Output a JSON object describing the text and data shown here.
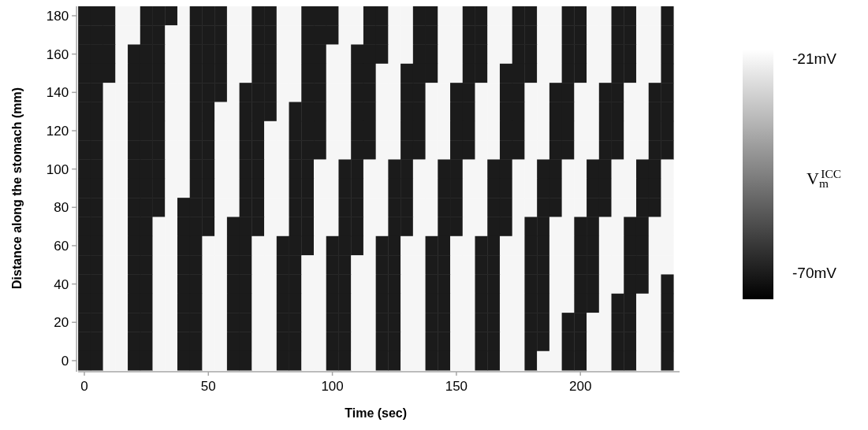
{
  "chart_data": {
    "type": "heatmap",
    "xlabel": "Time (sec)",
    "ylabel": "Distance along the stomach (mm)",
    "clabel": "V$_{m}$$^{ICC}$",
    "clim": [
      -76,
      -19
    ],
    "cticks": [
      {
        "value": -21,
        "label": "-21mV"
      },
      {
        "value": -70,
        "label": "-70mV"
      }
    ],
    "categories": [
      "0",
      null,
      null,
      null,
      null,
      null,
      null,
      null,
      null,
      null,
      "50",
      null,
      null,
      null,
      null,
      null,
      null,
      null,
      null,
      null,
      "100",
      null,
      null,
      null,
      null,
      null,
      null,
      null,
      null,
      null,
      "150",
      null,
      null,
      null,
      null,
      null,
      null,
      null,
      null,
      null,
      "200",
      null,
      null,
      null,
      null,
      null,
      null,
      null
    ],
    "y_categories": [
      "180",
      null,
      "160",
      null,
      "140",
      null,
      "120",
      null,
      "100",
      null,
      "80",
      null,
      "60",
      null,
      "40",
      null,
      "20",
      null,
      "0"
    ],
    "cells": [
      [
        -70,
        -70,
        -70,
        -21,
        -21,
        -70,
        -70,
        -70,
        -21,
        -70,
        -70,
        -70,
        -21,
        -21,
        -70,
        -70,
        -21,
        -21,
        -70,
        -70,
        -70,
        -21,
        -21,
        -70,
        -70,
        -21,
        -21,
        -70,
        -70,
        -21,
        -21,
        -70,
        -70,
        -21,
        -21,
        -70,
        -70,
        -21,
        -21,
        -70,
        -70,
        -21,
        -21,
        -70,
        -70,
        -21,
        -21,
        -70
      ],
      [
        -70,
        -70,
        -70,
        -21,
        -21,
        -70,
        -70,
        -21,
        -21,
        -70,
        -70,
        -70,
        -21,
        -21,
        -70,
        -70,
        -21,
        -21,
        -70,
        -70,
        -70,
        -21,
        -21,
        -70,
        -70,
        -21,
        -21,
        -70,
        -70,
        -21,
        -21,
        -70,
        -70,
        -21,
        -21,
        -70,
        -70,
        -21,
        -21,
        -70,
        -70,
        -21,
        -21,
        -70,
        -70,
        -21,
        -21,
        -70
      ],
      [
        -70,
        -70,
        -70,
        -21,
        -70,
        -70,
        -70,
        -21,
        -21,
        -70,
        -70,
        -70,
        -21,
        -21,
        -70,
        -70,
        -21,
        -21,
        -70,
        -70,
        -21,
        -21,
        -70,
        -70,
        -70,
        -21,
        -21,
        -70,
        -70,
        -21,
        -21,
        -70,
        -70,
        -21,
        -21,
        -70,
        -70,
        -21,
        -21,
        -70,
        -70,
        -21,
        -21,
        -70,
        -70,
        -21,
        -21,
        -70
      ],
      [
        -70,
        -70,
        -70,
        -21,
        -70,
        -70,
        -70,
        -21,
        -21,
        -70,
        -70,
        -70,
        -21,
        -21,
        -70,
        -70,
        -21,
        -21,
        -70,
        -70,
        -21,
        -21,
        -70,
        -70,
        -21,
        -21,
        -70,
        -70,
        -70,
        -21,
        -21,
        -70,
        -70,
        -21,
        -70,
        -70,
        -70,
        -21,
        -21,
        -70,
        -70,
        -21,
        -21,
        -70,
        -70,
        -21,
        -21,
        -70
      ],
      [
        -70,
        -70,
        -21,
        -21,
        -70,
        -70,
        -70,
        -21,
        -21,
        -70,
        -70,
        -70,
        -21,
        -70,
        -70,
        -70,
        -21,
        -21,
        -70,
        -70,
        -21,
        -21,
        -70,
        -70,
        -21,
        -21,
        -70,
        -70,
        -21,
        -21,
        -70,
        -70,
        -21,
        -21,
        -70,
        -70,
        -21,
        -21,
        -70,
        -70,
        -21,
        -21,
        -70,
        -70,
        -21,
        -21,
        -70,
        -70
      ],
      [
        -70,
        -70,
        -21,
        -21,
        -70,
        -70,
        -70,
        -21,
        -21,
        -70,
        -70,
        -21,
        -21,
        -70,
        -70,
        -70,
        -21,
        -70,
        -70,
        -70,
        -21,
        -21,
        -70,
        -70,
        -21,
        -21,
        -70,
        -70,
        -21,
        -21,
        -70,
        -70,
        -21,
        -21,
        -70,
        -70,
        -21,
        -21,
        -70,
        -70,
        -21,
        -21,
        -70,
        -70,
        -21,
        -21,
        -70,
        -70
      ],
      [
        -70,
        -70,
        -21,
        -21,
        -70,
        -70,
        -70,
        -21,
        -21,
        -70,
        -70,
        -21,
        -21,
        -70,
        -70,
        -21,
        -21,
        -70,
        -70,
        -70,
        -21,
        -21,
        -70,
        -70,
        -21,
        -21,
        -70,
        -70,
        -21,
        -21,
        -70,
        -70,
        -21,
        -21,
        -70,
        -70,
        -21,
        -21,
        -70,
        -70,
        -21,
        -21,
        -70,
        -70,
        -21,
        -21,
        -70,
        -70
      ],
      [
        -70,
        -70,
        -21,
        -21,
        -70,
        -70,
        -70,
        -21,
        -21,
        -70,
        -70,
        -21,
        -21,
        -70,
        -70,
        -21,
        -21,
        -70,
        -70,
        -70,
        -21,
        -21,
        -70,
        -70,
        -21,
        -21,
        -70,
        -70,
        -21,
        -21,
        -70,
        -70,
        -21,
        -21,
        -70,
        -70,
        -21,
        -21,
        -70,
        -70,
        -21,
        -21,
        -70,
        -70,
        -21,
        -21,
        -70,
        -70
      ],
      [
        -70,
        -70,
        -21,
        -21,
        -70,
        -70,
        -70,
        -21,
        -21,
        -70,
        -70,
        -21,
        -21,
        -70,
        -70,
        -21,
        -21,
        -70,
        -70,
        -21,
        -21,
        -70,
        -70,
        -21,
        -21,
        -70,
        -70,
        -21,
        -21,
        -70,
        -70,
        -21,
        -21,
        -70,
        -70,
        -21,
        -21,
        -70,
        -70,
        -21,
        -21,
        -70,
        -70,
        -21,
        -21,
        -70,
        -70,
        -21
      ],
      [
        -70,
        -70,
        -21,
        -21,
        -70,
        -70,
        -70,
        -21,
        -21,
        -70,
        -70,
        -21,
        -21,
        -70,
        -70,
        -21,
        -21,
        -70,
        -70,
        -21,
        -21,
        -70,
        -70,
        -21,
        -21,
        -70,
        -70,
        -21,
        -21,
        -70,
        -70,
        -21,
        -21,
        -70,
        -70,
        -21,
        -21,
        -70,
        -70,
        -21,
        -21,
        -70,
        -70,
        -21,
        -21,
        -70,
        -70,
        -21
      ],
      [
        -70,
        -70,
        -21,
        -21,
        -70,
        -70,
        -70,
        -21,
        -70,
        -70,
        -70,
        -21,
        -21,
        -70,
        -70,
        -21,
        -21,
        -70,
        -70,
        -21,
        -21,
        -70,
        -70,
        -21,
        -21,
        -70,
        -70,
        -21,
        -21,
        -70,
        -70,
        -21,
        -21,
        -70,
        -70,
        -21,
        -21,
        -70,
        -70,
        -21,
        -21,
        -70,
        -70,
        -21,
        -21,
        -70,
        -70,
        -21
      ],
      [
        -70,
        -70,
        -21,
        -21,
        -70,
        -70,
        -21,
        -21,
        -70,
        -70,
        -70,
        -21,
        -70,
        -70,
        -70,
        -21,
        -21,
        -70,
        -70,
        -21,
        -21,
        -70,
        -70,
        -21,
        -21,
        -70,
        -70,
        -21,
        -21,
        -70,
        -70,
        -21,
        -21,
        -70,
        -70,
        -21,
        -70,
        -70,
        -21,
        -21,
        -70,
        -70,
        -21,
        -21,
        -70,
        -70,
        -21,
        -21
      ],
      [
        -70,
        -70,
        -21,
        -21,
        -70,
        -70,
        -21,
        -21,
        -70,
        -70,
        -21,
        -21,
        -70,
        -70,
        -21,
        -21,
        -70,
        -70,
        -70,
        -21,
        -70,
        -70,
        -70,
        -21,
        -70,
        -70,
        -21,
        -21,
        -70,
        -70,
        -21,
        -21,
        -70,
        -70,
        -21,
        -21,
        -70,
        -70,
        -21,
        -21,
        -70,
        -70,
        -21,
        -21,
        -70,
        -70,
        -21,
        -21
      ],
      [
        -70,
        -70,
        -21,
        -21,
        -70,
        -70,
        -21,
        -21,
        -70,
        -70,
        -21,
        -21,
        -70,
        -70,
        -21,
        -21,
        -70,
        -70,
        -21,
        -21,
        -70,
        -70,
        -21,
        -21,
        -70,
        -70,
        -21,
        -21,
        -70,
        -70,
        -21,
        -21,
        -70,
        -70,
        -21,
        -21,
        -70,
        -70,
        -21,
        -21,
        -70,
        -70,
        -21,
        -21,
        -70,
        -70,
        -21,
        -21
      ],
      [
        -70,
        -70,
        -21,
        -21,
        -70,
        -70,
        -21,
        -21,
        -70,
        -70,
        -21,
        -21,
        -70,
        -70,
        -21,
        -21,
        -70,
        -70,
        -21,
        -21,
        -70,
        -70,
        -21,
        -21,
        -70,
        -70,
        -21,
        -21,
        -70,
        -70,
        -21,
        -21,
        -70,
        -70,
        -21,
        -21,
        -70,
        -70,
        -21,
        -21,
        -70,
        -70,
        -21,
        -21,
        -70,
        -70,
        -21,
        -70
      ],
      [
        -70,
        -70,
        -21,
        -21,
        -70,
        -70,
        -21,
        -21,
        -70,
        -70,
        -21,
        -21,
        -70,
        -70,
        -21,
        -21,
        -70,
        -70,
        -21,
        -21,
        -70,
        -70,
        -21,
        -21,
        -70,
        -70,
        -21,
        -21,
        -70,
        -70,
        -21,
        -21,
        -70,
        -70,
        -21,
        -21,
        -70,
        -70,
        -21,
        -21,
        -70,
        -70,
        -21,
        -70,
        -70,
        -21,
        -21,
        -70
      ],
      [
        -70,
        -70,
        -21,
        -21,
        -70,
        -70,
        -21,
        -21,
        -70,
        -70,
        -21,
        -21,
        -70,
        -70,
        -21,
        -21,
        -70,
        -70,
        -21,
        -21,
        -70,
        -70,
        -21,
        -21,
        -70,
        -70,
        -21,
        -21,
        -70,
        -70,
        -21,
        -21,
        -70,
        -70,
        -21,
        -21,
        -70,
        -70,
        -21,
        -70,
        -70,
        -21,
        -21,
        -70,
        -70,
        -21,
        -21,
        -70
      ],
      [
        -70,
        -70,
        -21,
        -21,
        -70,
        -70,
        -21,
        -21,
        -70,
        -70,
        -21,
        -21,
        -70,
        -70,
        -21,
        -21,
        -70,
        -70,
        -21,
        -21,
        -70,
        -70,
        -21,
        -21,
        -70,
        -70,
        -21,
        -21,
        -70,
        -70,
        -21,
        -21,
        -70,
        -70,
        -21,
        -21,
        -70,
        -70,
        -21,
        -70,
        -70,
        -21,
        -21,
        -70,
        -70,
        -21,
        -21,
        -70
      ],
      [
        -70,
        -70,
        -21,
        -21,
        -70,
        -70,
        -21,
        -21,
        -70,
        -70,
        -21,
        -21,
        -70,
        -70,
        -21,
        -21,
        -70,
        -70,
        -21,
        -21,
        -70,
        -70,
        -21,
        -21,
        -70,
        -70,
        -21,
        -21,
        -70,
        -70,
        -21,
        -21,
        -70,
        -70,
        -21,
        -21,
        -70,
        -21,
        -21,
        -70,
        -70,
        -21,
        -21,
        -70,
        -70,
        -21,
        -21,
        -70
      ]
    ]
  }
}
